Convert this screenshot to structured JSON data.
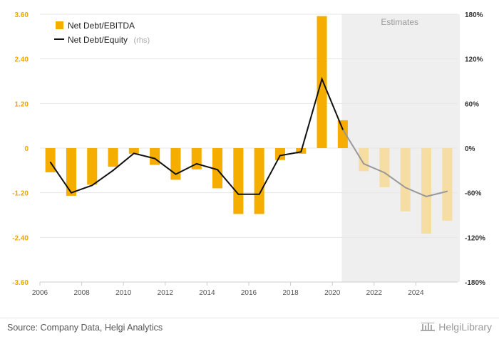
{
  "chart_data": {
    "type": "bar",
    "categories": [
      "2006",
      "2007",
      "2008",
      "2009",
      "2010",
      "2011",
      "2012",
      "2013",
      "2014",
      "2015",
      "2016",
      "2017",
      "2018",
      "2019",
      "2020",
      "2021",
      "2022",
      "2023",
      "2024",
      "2025"
    ],
    "x_tick_labels": [
      "2006",
      "2008",
      "2010",
      "2012",
      "2014",
      "2016",
      "2018",
      "2020",
      "2022",
      "2024"
    ],
    "series": [
      {
        "name": "Net Debt/EBITDA",
        "type": "bar",
        "axis": "left",
        "color": "#f5ae00",
        "estimate_color": "#f6dda4",
        "values": [
          -0.65,
          -1.28,
          -0.98,
          -0.5,
          -0.15,
          -0.45,
          -0.85,
          -0.57,
          -1.08,
          -1.77,
          -1.77,
          -0.32,
          -0.15,
          3.55,
          0.75,
          -0.62,
          -1.05,
          -1.7,
          -2.3,
          -1.95
        ]
      },
      {
        "name": "Net Debt/Equity",
        "name_suffix": "(rhs)",
        "type": "line",
        "axis": "right",
        "color": "#111111",
        "estimate_color": "#999999",
        "values": [
          -19,
          -60,
          -50,
          -30,
          -7,
          -14,
          -35,
          -21,
          -29,
          -62,
          -62,
          -10,
          -5,
          93,
          25,
          -21,
          -33,
          -53,
          -65,
          -58
        ]
      }
    ],
    "left_axis": {
      "ticks": [
        "3.60",
        "2.40",
        "1.20",
        "0",
        "-1.20",
        "-2.40",
        "-3.60"
      ],
      "range": [
        -3.6,
        3.6
      ]
    },
    "right_axis": {
      "ticks": [
        "180%",
        "120%",
        "60%",
        "0%",
        "-60%",
        "-120%",
        "-180%"
      ],
      "range": [
        -180,
        180
      ]
    },
    "estimates": {
      "label": "Estimates",
      "from": "2020",
      "to": "2025"
    },
    "grid": true,
    "legend_position": "top-left"
  },
  "footer": {
    "source": "Source: Company Data, Helgi Analytics",
    "brand": "HelgiLibrary"
  },
  "colors": {
    "bar": "#f5ae00",
    "bar_estimate": "#f6dda4",
    "line": "#111111",
    "line_estimate": "#999999",
    "estimate_band": "#efefef"
  }
}
